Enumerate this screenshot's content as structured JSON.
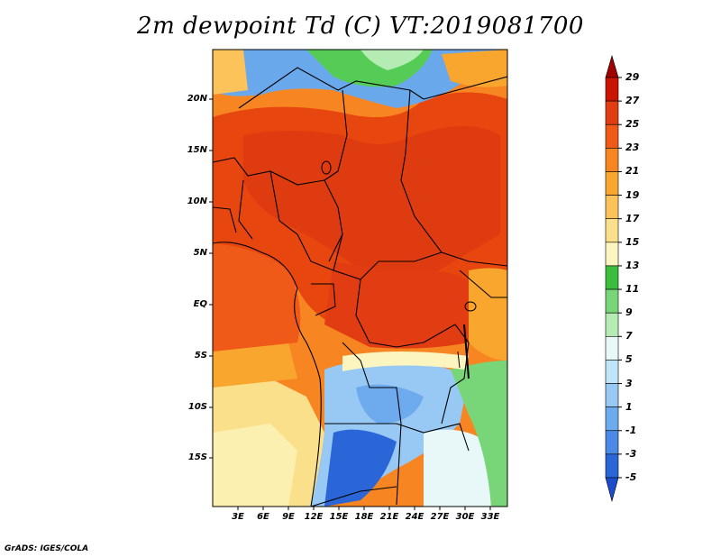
{
  "title": "2m dewpoint Td (C) VT:2019081700",
  "footer": "GrADS: IGES/COLA",
  "map": {
    "lat_ticks": [
      "20N",
      "15N",
      "10N",
      "5N",
      "EQ",
      "5S",
      "10S",
      "15S"
    ],
    "lon_ticks": [
      "3E",
      "6E",
      "9E",
      "12E",
      "15E",
      "18E",
      "21E",
      "24E",
      "27E",
      "30E",
      "33E"
    ]
  },
  "colorbar": {
    "labels": [
      "29",
      "27",
      "25",
      "23",
      "21",
      "19",
      "17",
      "15",
      "13",
      "11",
      "9",
      "7",
      "5",
      "3",
      "1",
      "-1",
      "-3",
      "-5"
    ],
    "colors": [
      "#a00000",
      "#c81400",
      "#e23c12",
      "#f05a18",
      "#f78622",
      "#f9a62e",
      "#fbc35a",
      "#fbe08c",
      "#fcf5c0",
      "#3cbe3c",
      "#78d678",
      "#b4ecb4",
      "#e8f8f8",
      "#c0e4fa",
      "#98c8f4",
      "#6eaaee",
      "#4a8ae6",
      "#2a66d8",
      "#1a4ccc"
    ]
  },
  "colors": {
    "hot": "#e8460f",
    "warm": "#f47b1f",
    "dry_blue": "#6aa8ec",
    "green": "#55cc55"
  }
}
